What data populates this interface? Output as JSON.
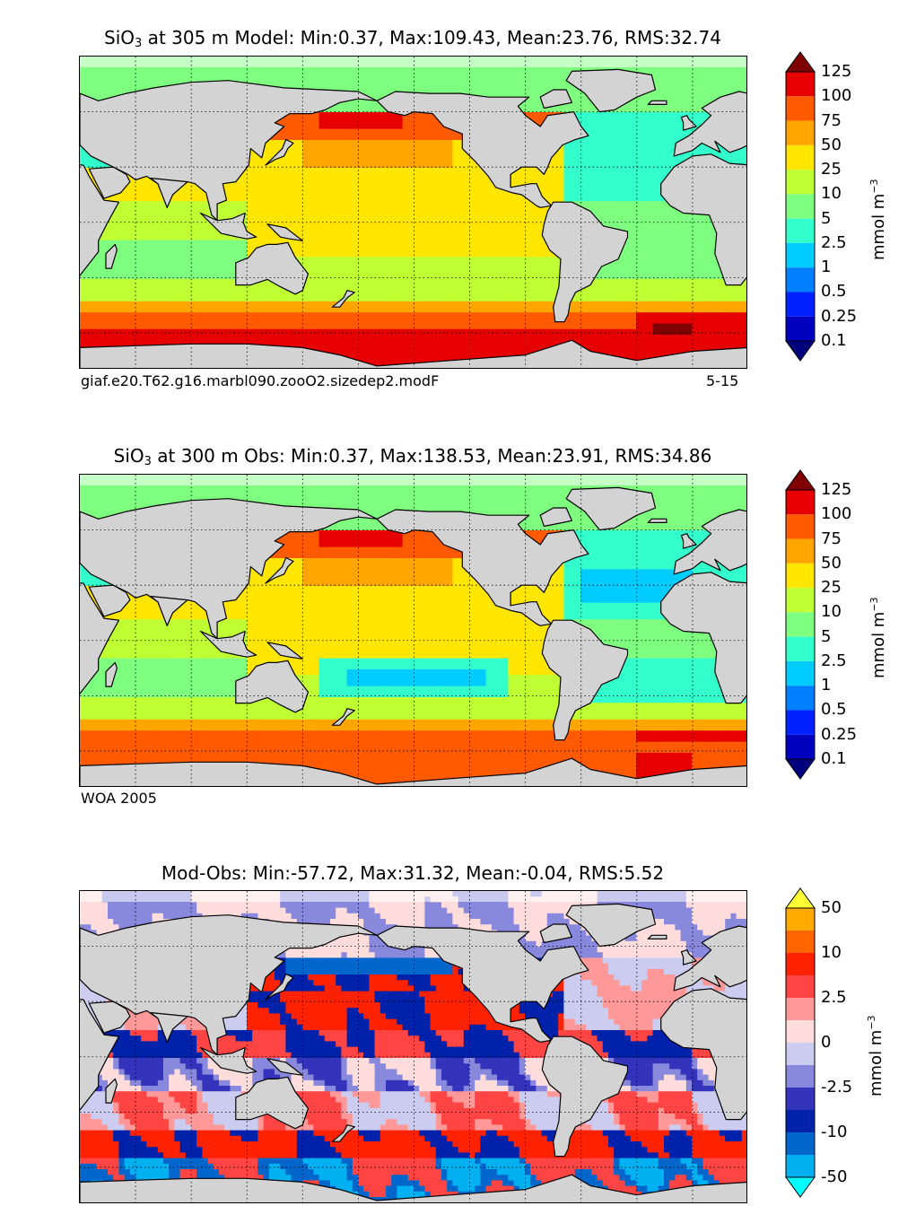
{
  "chart_data": [
    {
      "type": "heatmap",
      "title_var": "SiO",
      "title_sub": "3",
      "title_rest": " at 305 m Model: Min:0.37, Max:109.43, Mean:23.76, RMS:32.74",
      "caption_left": "giaf.e20.T62.g16.marbl090.zooO2.sizedep2.modF",
      "caption_right": "5-15",
      "unit_main": "mmol m",
      "unit_sup": "−3",
      "colorbar": {
        "ticks": [
          "0.1",
          "0.25",
          "0.5",
          "1",
          "2.5",
          "5",
          "10",
          "25",
          "50",
          "75",
          "100",
          "125"
        ],
        "colors": [
          "#00007f",
          "#0000bf",
          "#0022ff",
          "#0080ff",
          "#00ccff",
          "#33ffcc",
          "#7fff7f",
          "#bfff33",
          "#ffe600",
          "#ffa500",
          "#ff5a00",
          "#e60000",
          "#7f0000"
        ]
      },
      "stats": {
        "min": 0.37,
        "max": 109.43,
        "mean": 23.76,
        "rms": 32.74
      }
    },
    {
      "type": "heatmap",
      "title_var": "SiO",
      "title_sub": "3",
      "title_rest": " at 300 m Obs: Min:0.37, Max:138.53, Mean:23.91, RMS:34.86",
      "caption_left": "WOA 2005",
      "caption_right": "",
      "unit_main": "mmol m",
      "unit_sup": "−3",
      "colorbar": {
        "ticks": [
          "0.1",
          "0.25",
          "0.5",
          "1",
          "2.5",
          "5",
          "10",
          "25",
          "50",
          "75",
          "100",
          "125"
        ],
        "colors": [
          "#00007f",
          "#0000bf",
          "#0022ff",
          "#0080ff",
          "#00ccff",
          "#33ffcc",
          "#7fff7f",
          "#bfff33",
          "#ffe600",
          "#ffa500",
          "#ff5a00",
          "#e60000",
          "#7f0000"
        ]
      },
      "stats": {
        "min": 0.37,
        "max": 138.53,
        "mean": 23.91,
        "rms": 34.86
      }
    },
    {
      "type": "heatmap",
      "title_var": "",
      "title_sub": "",
      "title_rest": "Mod-Obs: Min:-57.72, Max:31.32, Mean:-0.04, RMS:5.52",
      "caption_left": "",
      "caption_right": "",
      "unit_main": "mmol m",
      "unit_sup": "−3",
      "colorbar": {
        "ticks": [
          "-50",
          "",
          "-10",
          "",
          "-2.5",
          "",
          "0",
          "",
          "2.5",
          "",
          "10",
          "",
          "50"
        ],
        "colors": [
          "#00ffff",
          "#00b0f0",
          "#0066cc",
          "#0022aa",
          "#3333bb",
          "#8888dd",
          "#ccccf0",
          "#ffdddd",
          "#ff9999",
          "#ff4444",
          "#ff2200",
          "#ff6600",
          "#ffaa00",
          "#ffff33"
        ]
      },
      "stats": {
        "min": -57.72,
        "max": 31.32,
        "mean": -0.04,
        "rms": 5.52
      }
    }
  ]
}
